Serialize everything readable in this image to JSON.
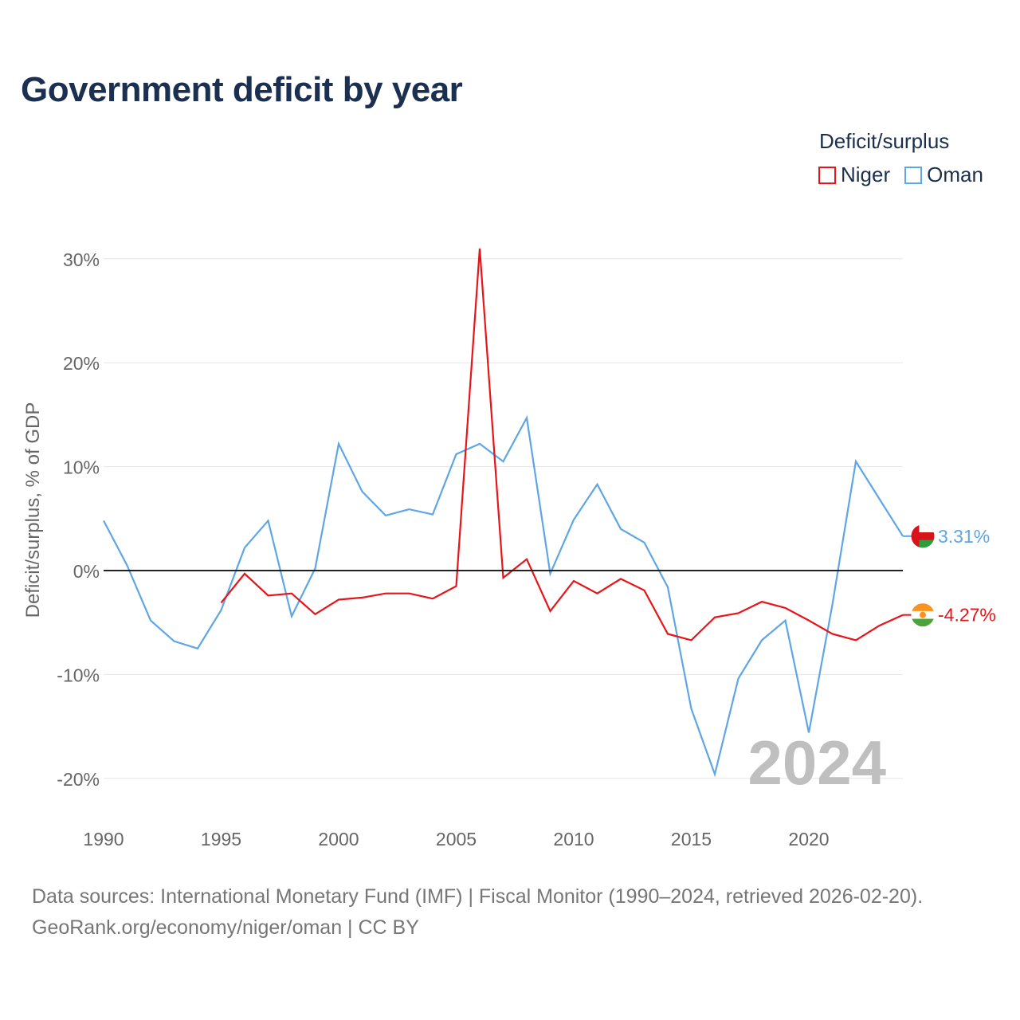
{
  "chart_data": {
    "type": "line",
    "title": "Government deficit by year",
    "legend_title": "Deficit/surplus",
    "ylabel": "Deficit/surplus, % of GDP",
    "xlabel": "",
    "xlim": [
      1990,
      2024
    ],
    "ylim": [
      -20,
      30
    ],
    "x_ticks": [
      1990,
      1995,
      2000,
      2005,
      2010,
      2015,
      2020
    ],
    "y_ticks": [
      {
        "value": 30,
        "label": "30%"
      },
      {
        "value": 20,
        "label": "20%"
      },
      {
        "value": 10,
        "label": "10%"
      },
      {
        "value": 0,
        "label": "0%"
      },
      {
        "value": -10,
        "label": "-10%"
      },
      {
        "value": -20,
        "label": "-20%"
      }
    ],
    "year_watermark": "2024",
    "series": [
      {
        "name": "Niger",
        "color": "#e8141a",
        "x": [
          1995,
          1996,
          1997,
          1998,
          1999,
          2000,
          2001,
          2002,
          2003,
          2004,
          2005,
          2006,
          2007,
          2008,
          2009,
          2010,
          2011,
          2012,
          2013,
          2014,
          2015,
          2016,
          2017,
          2018,
          2019,
          2020,
          2021,
          2022,
          2023,
          2024
        ],
        "values": [
          -3.1,
          -0.3,
          -2.4,
          -2.2,
          -4.2,
          -2.8,
          -2.6,
          -2.2,
          -2.2,
          -2.7,
          -1.5,
          31.0,
          -0.7,
          1.1,
          -3.9,
          -1.0,
          -2.2,
          -0.8,
          -1.9,
          -6.1,
          -6.7,
          -4.5,
          -4.1,
          -3.0,
          -3.6,
          -4.8,
          -6.1,
          -6.7,
          -5.3,
          -4.27
        ],
        "end_label": "-4.27%",
        "flag": "niger-flag-icon"
      },
      {
        "name": "Oman",
        "color": "#5ea6e5",
        "x": [
          1990,
          1991,
          1992,
          1993,
          1994,
          1995,
          1996,
          1997,
          1998,
          1999,
          2000,
          2001,
          2002,
          2003,
          2004,
          2005,
          2006,
          2007,
          2008,
          2009,
          2010,
          2011,
          2012,
          2013,
          2014,
          2015,
          2016,
          2017,
          2018,
          2019,
          2020,
          2021,
          2022,
          2023,
          2024
        ],
        "values": [
          4.8,
          0.5,
          -4.8,
          -6.8,
          -7.5,
          -3.8,
          2.2,
          4.8,
          -4.4,
          0.2,
          12.2,
          7.6,
          5.3,
          5.9,
          5.4,
          11.2,
          12.2,
          10.5,
          14.7,
          -0.3,
          4.9,
          8.3,
          4.0,
          2.7,
          -1.6,
          -13.3,
          -19.6,
          -10.4,
          -6.7,
          -4.8,
          -15.6,
          -3.3,
          10.5,
          6.9,
          3.31
        ],
        "end_label": "3.31%",
        "flag": "oman-flag-icon"
      }
    ]
  },
  "source": {
    "line1": "Data sources: International Monetary Fund (IMF) | Fiscal Monitor (1990–2024, retrieved 2026-02-20).",
    "line2": "GeoRank.org/economy/niger/oman | CC BY"
  },
  "colors": {
    "title": "#1b3050",
    "niger_flag_orange": "#f7931e",
    "niger_flag_green": "#4ca33b",
    "oman_flag_red": "#d7141a",
    "oman_flag_green": "#2c9f3c",
    "zero_line": "#222222",
    "grid": "#e6e6e6",
    "watermark": "#bfbfbf"
  }
}
